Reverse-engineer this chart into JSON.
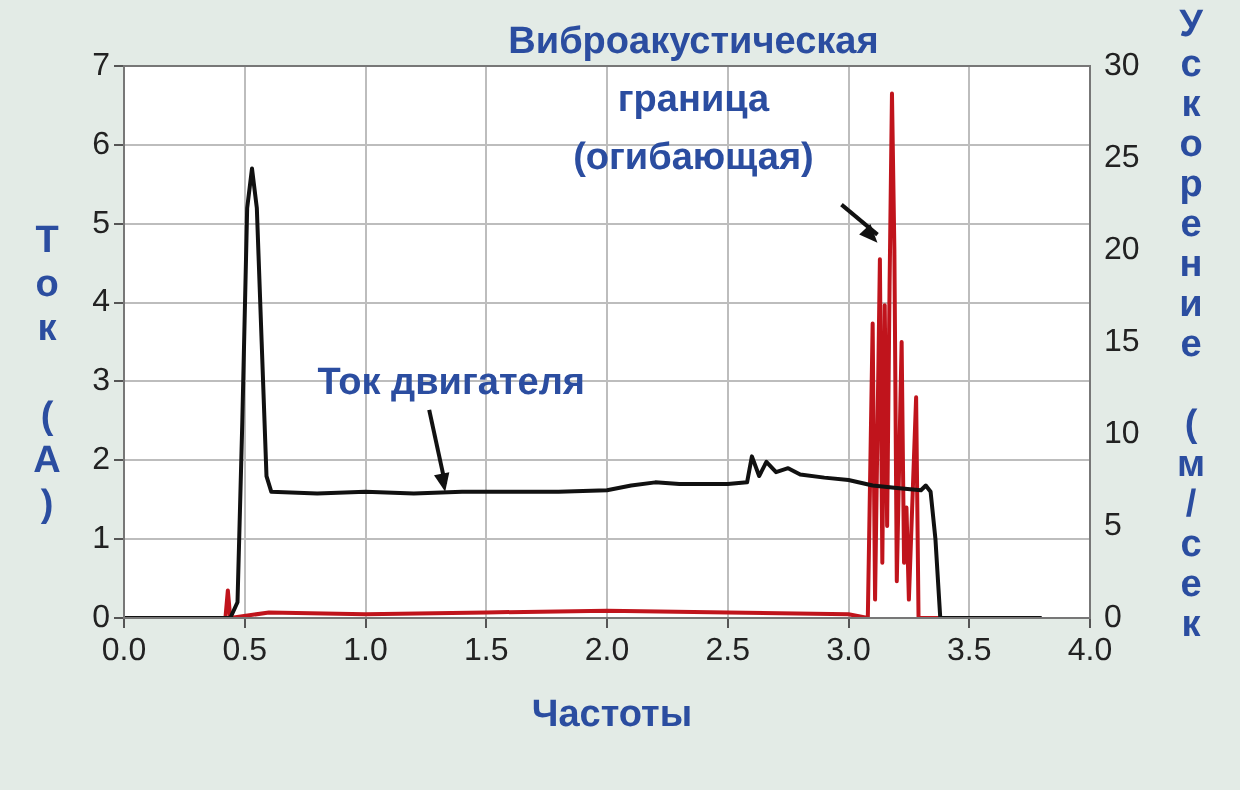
{
  "chart_data": {
    "type": "line",
    "xlabel": "Частоты",
    "ylabel": "Ток (А)",
    "y2label": "Ускорение (м/сек",
    "xlim": [
      0,
      4
    ],
    "xticks": [
      {
        "value": 0,
        "label": "0.0"
      },
      {
        "value": 0.5,
        "label": "0.5"
      },
      {
        "value": 1,
        "label": "1.0"
      },
      {
        "value": 1.5,
        "label": "1.5"
      },
      {
        "value": 2,
        "label": "2.0"
      },
      {
        "value": 2.5,
        "label": "2.5"
      },
      {
        "value": 3,
        "label": "3.0"
      },
      {
        "value": 3.5,
        "label": "3.5"
      },
      {
        "value": 4,
        "label": "4.0"
      }
    ],
    "ylim": [
      0,
      7
    ],
    "yticks": [
      0,
      1,
      2,
      3,
      4,
      5,
      6,
      7
    ],
    "y2lim": [
      0,
      30
    ],
    "y2ticks": [
      0,
      5,
      10,
      15,
      20,
      25,
      30
    ],
    "grid": true,
    "marker": "none",
    "line_style": "solid",
    "series": [
      {
        "color": "#111111",
        "x": [
          0,
          0.44,
          0.47,
          0.49,
          0.51,
          0.53,
          0.55,
          0.57,
          0.59,
          0.61,
          0.8,
          1.0,
          1.2,
          1.4,
          1.6,
          1.8,
          2.0,
          2.1,
          2.2,
          2.3,
          2.5,
          2.58,
          2.6,
          2.63,
          2.66,
          2.7,
          2.75,
          2.8,
          2.9,
          3.0,
          3.1,
          3.2,
          3.3,
          3.32,
          3.34,
          3.36,
          3.38,
          3.8
        ],
        "values": [
          0,
          0,
          0.2,
          2.5,
          5.2,
          5.7,
          5.2,
          3.5,
          1.8,
          1.6,
          1.58,
          1.6,
          1.58,
          1.6,
          1.6,
          1.6,
          1.62,
          1.68,
          1.72,
          1.7,
          1.7,
          1.72,
          2.05,
          1.8,
          1.98,
          1.85,
          1.9,
          1.82,
          1.78,
          1.75,
          1.68,
          1.65,
          1.62,
          1.68,
          1.6,
          1.0,
          0,
          0
        ]
      },
      {
        "color": "#c0141c",
        "axis": "y2",
        "x": [
          0,
          0.42,
          0.43,
          0.44,
          0.6,
          1.0,
          1.5,
          2.0,
          2.5,
          3.0,
          3.08,
          3.1,
          3.11,
          3.13,
          3.14,
          3.15,
          3.16,
          3.17,
          3.18,
          3.19,
          3.2,
          3.22,
          3.23,
          3.24,
          3.25,
          3.28,
          3.29,
          3.3,
          3.75
        ],
        "values": [
          0,
          0,
          1.5,
          0,
          0.3,
          0.2,
          0.3,
          0.4,
          0.3,
          0.2,
          0,
          16,
          1,
          19.5,
          3,
          17,
          5,
          18,
          28.5,
          20,
          2,
          15,
          3,
          6,
          1,
          12,
          0,
          0,
          0
        ]
      }
    ],
    "annotations": [
      {
        "text": "Ток двигателя",
        "x": 1.33,
        "y": 1.6
      },
      "Виброакустическая\nграница\n(огибающая)"
    ]
  }
}
